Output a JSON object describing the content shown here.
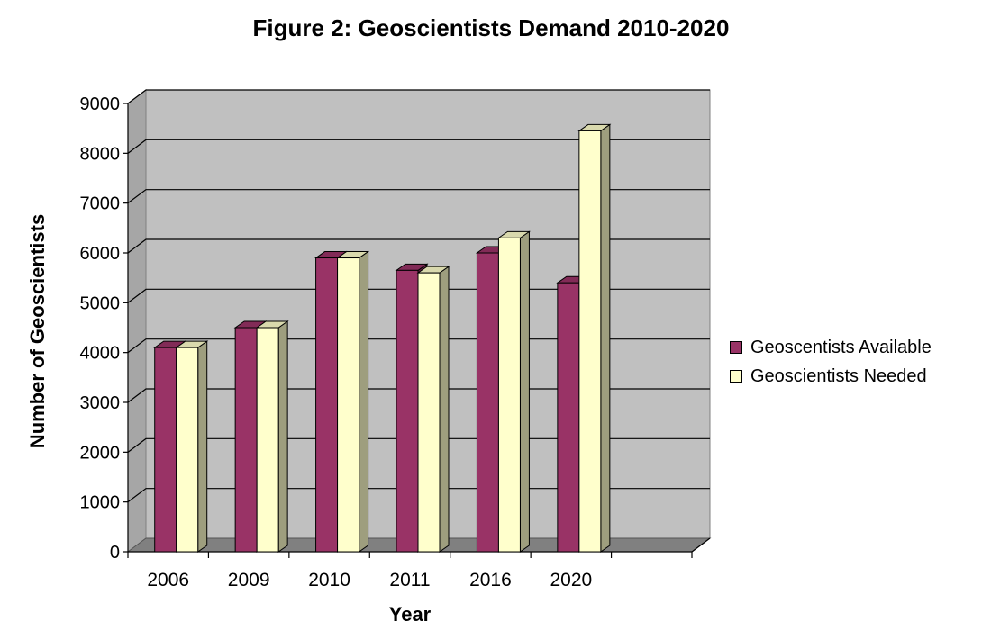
{
  "chart_data": {
    "type": "bar",
    "title": "Figure 2: Geoscientists Demand 2010-2020",
    "xlabel": "Year",
    "ylabel": "Number of Geoscientists",
    "categories": [
      "2006",
      "2009",
      "2010",
      "2011",
      "2016",
      "2020"
    ],
    "series": [
      {
        "name": "Geoscentists Available",
        "values": [
          4100,
          4500,
          5900,
          5650,
          6000,
          5400
        ],
        "color": "#993366"
      },
      {
        "name": "Geoscientists Needed",
        "values": [
          4100,
          4500,
          5900,
          5600,
          6300,
          8450
        ],
        "color": "#FFFFCC"
      }
    ],
    "ylim": [
      0,
      9000
    ],
    "yticks": [
      0,
      1000,
      2000,
      3000,
      4000,
      5000,
      6000,
      7000,
      8000,
      9000
    ],
    "grid": true,
    "legend_position": "right",
    "colors": {
      "plot_wall": "#C0C0C0",
      "floor": "#808080"
    }
  }
}
